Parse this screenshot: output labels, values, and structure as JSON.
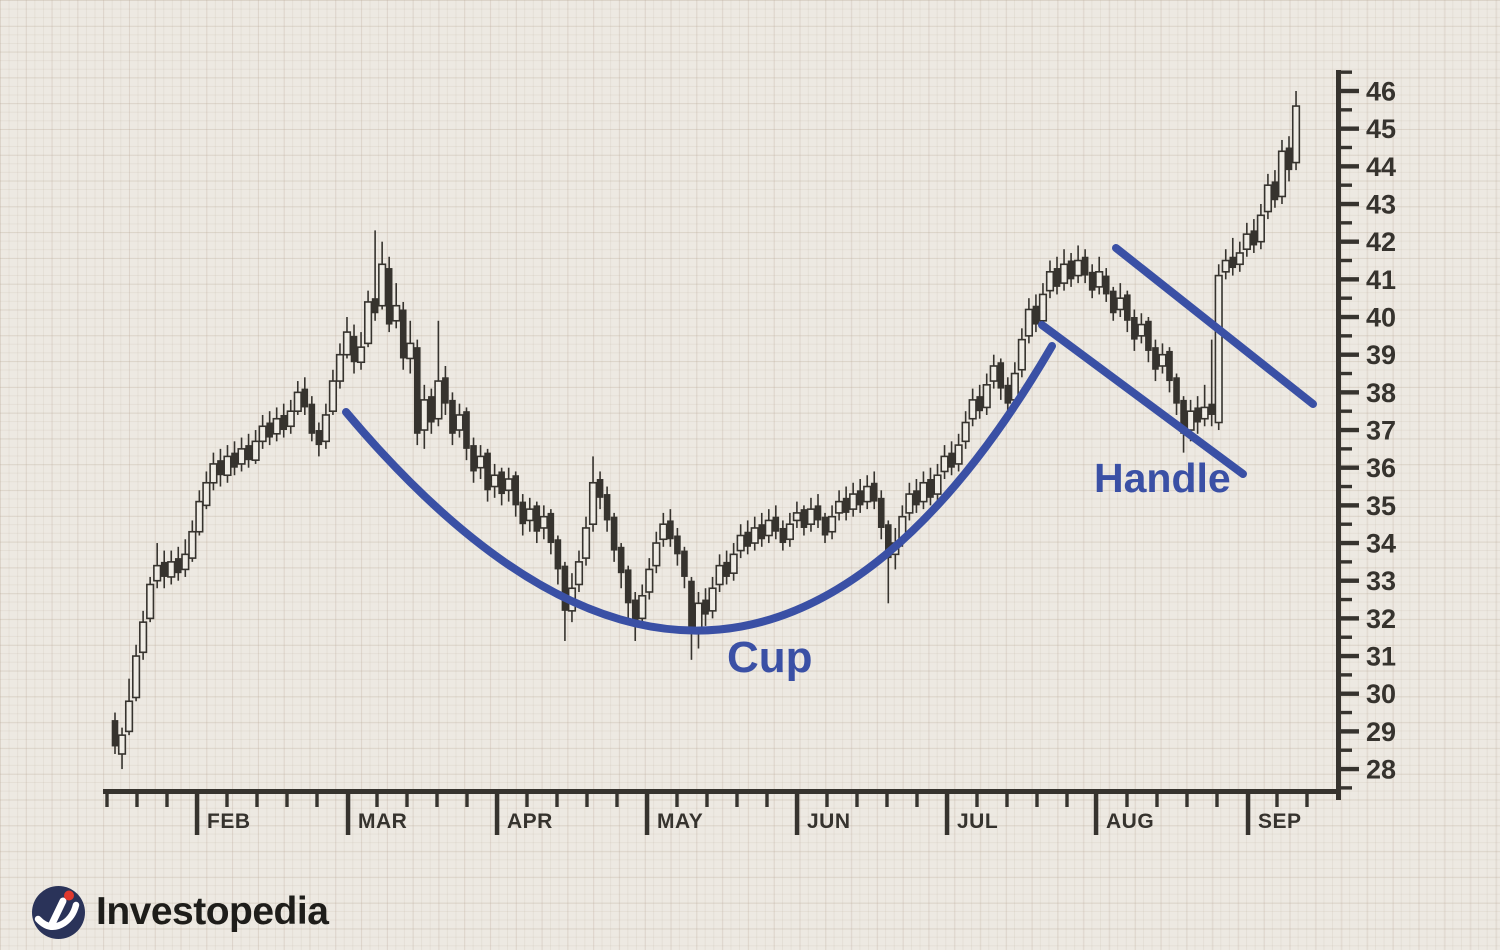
{
  "branding": {
    "name": "Investopedia"
  },
  "annotations": {
    "cup": "Cup",
    "handle": "Handle"
  },
  "colors": {
    "background": "#EDE9E2",
    "candle_dark": "#36332E",
    "candle_hollow_fill": "#EFECE5",
    "axis": "#36332E",
    "annotation_blue": "#3A50A5",
    "logo_navy": "#2A3359",
    "logo_red": "#E0392E",
    "logo_text_color": "#1E1D1A"
  },
  "chart_data": {
    "type": "candlestick",
    "pattern_shown": "cup and handle",
    "x_axis": {
      "month_labels": [
        "FEB",
        "MAR",
        "APR",
        "MAY",
        "JUN",
        "JUL",
        "AUG",
        "SEP"
      ],
      "minor_ticks_between_months": 4
    },
    "y_axis": {
      "side": "right",
      "tick_labels": [
        46,
        45,
        44,
        43,
        42,
        41,
        40,
        39,
        38,
        37,
        36,
        35,
        34,
        33,
        32,
        31,
        30,
        29,
        28
      ],
      "min": 27.5,
      "max": 46.5,
      "major_step": 1,
      "minor_step": 0.5
    },
    "candle_format": "[open, high, low, close]",
    "candles": [
      [
        29.3,
        29.5,
        28.4,
        28.6
      ],
      [
        28.4,
        29.1,
        28.0,
        28.9
      ],
      [
        29.0,
        30.4,
        28.9,
        29.8
      ],
      [
        29.9,
        31.3,
        29.8,
        31.0
      ],
      [
        31.1,
        32.2,
        30.9,
        31.9
      ],
      [
        32.0,
        33.1,
        31.9,
        32.9
      ],
      [
        33.0,
        34.0,
        32.8,
        33.4
      ],
      [
        33.5,
        33.8,
        32.8,
        33.1
      ],
      [
        33.1,
        33.8,
        32.9,
        33.5
      ],
      [
        33.6,
        33.9,
        33.0,
        33.2
      ],
      [
        33.3,
        34.1,
        33.1,
        33.7
      ],
      [
        33.6,
        34.6,
        33.5,
        34.3
      ],
      [
        34.3,
        35.4,
        34.2,
        35.1
      ],
      [
        35.0,
        35.9,
        34.9,
        35.6
      ],
      [
        35.6,
        36.4,
        35.4,
        36.1
      ],
      [
        36.2,
        36.5,
        35.5,
        35.8
      ],
      [
        35.8,
        36.6,
        35.6,
        36.3
      ],
      [
        36.4,
        36.7,
        35.8,
        36.0
      ],
      [
        36.1,
        36.8,
        35.9,
        36.5
      ],
      [
        36.6,
        36.9,
        36.0,
        36.2
      ],
      [
        36.2,
        37.0,
        36.1,
        36.7
      ],
      [
        36.7,
        37.4,
        36.5,
        37.1
      ],
      [
        37.2,
        37.5,
        36.6,
        36.8
      ],
      [
        36.9,
        37.6,
        36.7,
        37.3
      ],
      [
        37.4,
        37.7,
        36.8,
        37.0
      ],
      [
        37.1,
        37.8,
        36.9,
        37.5
      ],
      [
        37.5,
        38.3,
        37.4,
        38.0
      ],
      [
        38.1,
        38.4,
        37.4,
        37.6
      ],
      [
        37.7,
        37.9,
        36.7,
        36.9
      ],
      [
        37.0,
        37.2,
        36.3,
        36.6
      ],
      [
        36.7,
        37.7,
        36.5,
        37.4
      ],
      [
        37.5,
        38.6,
        37.4,
        38.3
      ],
      [
        38.3,
        39.3,
        38.1,
        39.0
      ],
      [
        39.0,
        40.0,
        38.9,
        39.6
      ],
      [
        39.5,
        39.8,
        38.5,
        38.8
      ],
      [
        38.8,
        39.6,
        38.6,
        39.2
      ],
      [
        39.3,
        40.7,
        39.2,
        40.4
      ],
      [
        40.5,
        42.3,
        39.9,
        40.1
      ],
      [
        40.3,
        42.0,
        40.2,
        41.4
      ],
      [
        41.3,
        41.6,
        39.6,
        39.8
      ],
      [
        39.9,
        40.9,
        39.7,
        40.3
      ],
      [
        40.2,
        40.4,
        38.6,
        38.9
      ],
      [
        38.9,
        39.9,
        38.5,
        39.3
      ],
      [
        39.2,
        39.4,
        36.6,
        36.9
      ],
      [
        37.0,
        38.2,
        36.5,
        37.8
      ],
      [
        37.9,
        38.1,
        36.9,
        37.2
      ],
      [
        37.3,
        39.9,
        37.1,
        38.3
      ],
      [
        38.4,
        38.7,
        37.4,
        37.7
      ],
      [
        37.8,
        38.0,
        36.6,
        36.9
      ],
      [
        37.0,
        37.7,
        36.8,
        37.4
      ],
      [
        37.5,
        37.6,
        36.2,
        36.5
      ],
      [
        36.6,
        36.8,
        35.6,
        35.9
      ],
      [
        36.0,
        36.6,
        35.7,
        36.3
      ],
      [
        36.4,
        36.5,
        35.1,
        35.4
      ],
      [
        35.5,
        36.1,
        35.2,
        35.8
      ],
      [
        35.9,
        36.0,
        35.0,
        35.3
      ],
      [
        35.4,
        36.0,
        35.1,
        35.7
      ],
      [
        35.8,
        35.9,
        34.7,
        35.0
      ],
      [
        35.1,
        35.3,
        34.2,
        34.5
      ],
      [
        34.6,
        35.2,
        34.3,
        34.9
      ],
      [
        35.0,
        35.1,
        34.0,
        34.3
      ],
      [
        34.4,
        35.0,
        34.1,
        34.7
      ],
      [
        34.8,
        34.9,
        33.7,
        34.0
      ],
      [
        34.1,
        34.2,
        32.9,
        33.3
      ],
      [
        33.4,
        33.5,
        31.4,
        32.2
      ],
      [
        32.2,
        33.2,
        31.9,
        32.8
      ],
      [
        32.9,
        33.8,
        32.7,
        33.5
      ],
      [
        33.6,
        34.7,
        33.4,
        34.4
      ],
      [
        34.5,
        36.3,
        34.3,
        35.6
      ],
      [
        35.7,
        35.9,
        34.9,
        35.2
      ],
      [
        35.3,
        35.5,
        34.3,
        34.6
      ],
      [
        34.7,
        34.8,
        33.5,
        33.8
      ],
      [
        33.9,
        34.0,
        32.8,
        33.2
      ],
      [
        33.3,
        33.4,
        31.9,
        32.4
      ],
      [
        32.5,
        32.7,
        31.4,
        31.9
      ],
      [
        32.0,
        32.9,
        31.8,
        32.6
      ],
      [
        32.7,
        33.6,
        32.5,
        33.3
      ],
      [
        33.4,
        34.3,
        33.2,
        34.0
      ],
      [
        34.1,
        34.8,
        33.9,
        34.5
      ],
      [
        34.6,
        34.9,
        33.9,
        34.1
      ],
      [
        34.2,
        34.4,
        33.4,
        33.7
      ],
      [
        33.8,
        33.9,
        32.8,
        33.1
      ],
      [
        33.0,
        33.1,
        30.9,
        31.7
      ],
      [
        31.7,
        32.7,
        31.2,
        32.4
      ],
      [
        32.5,
        32.8,
        31.8,
        32.1
      ],
      [
        32.2,
        33.1,
        32.0,
        32.8
      ],
      [
        32.9,
        33.7,
        32.7,
        33.4
      ],
      [
        33.5,
        33.8,
        32.9,
        33.1
      ],
      [
        33.2,
        34.0,
        33.0,
        33.7
      ],
      [
        33.8,
        34.5,
        33.6,
        34.2
      ],
      [
        34.3,
        34.6,
        33.7,
        33.9
      ],
      [
        34.0,
        34.7,
        33.8,
        34.4
      ],
      [
        34.5,
        34.8,
        33.9,
        34.1
      ],
      [
        34.2,
        34.9,
        34.0,
        34.6
      ],
      [
        34.7,
        35.0,
        34.1,
        34.3
      ],
      [
        34.4,
        34.6,
        33.8,
        34.0
      ],
      [
        34.1,
        34.8,
        33.9,
        34.5
      ],
      [
        34.6,
        35.1,
        34.4,
        34.8
      ],
      [
        34.9,
        35.0,
        34.2,
        34.4
      ],
      [
        34.5,
        35.2,
        34.3,
        34.9
      ],
      [
        35.0,
        35.3,
        34.4,
        34.6
      ],
      [
        34.7,
        34.8,
        34.0,
        34.2
      ],
      [
        34.3,
        35.0,
        34.1,
        34.7
      ],
      [
        34.8,
        35.4,
        34.6,
        35.1
      ],
      [
        35.2,
        35.5,
        34.6,
        34.8
      ],
      [
        34.9,
        35.6,
        34.7,
        35.3
      ],
      [
        35.4,
        35.7,
        34.8,
        35.0
      ],
      [
        35.1,
        35.8,
        34.9,
        35.5
      ],
      [
        35.6,
        35.9,
        34.9,
        35.1
      ],
      [
        35.2,
        35.4,
        34.1,
        34.4
      ],
      [
        34.5,
        34.6,
        32.4,
        33.6
      ],
      [
        33.7,
        34.4,
        33.3,
        34.0
      ],
      [
        34.1,
        35.0,
        33.9,
        34.7
      ],
      [
        34.8,
        35.6,
        34.6,
        35.3
      ],
      [
        35.4,
        35.7,
        34.8,
        35.0
      ],
      [
        35.1,
        35.9,
        34.9,
        35.6
      ],
      [
        35.7,
        36.0,
        35.0,
        35.2
      ],
      [
        35.3,
        36.1,
        35.1,
        35.8
      ],
      [
        35.9,
        36.6,
        35.7,
        36.3
      ],
      [
        36.4,
        36.7,
        35.8,
        36.0
      ],
      [
        36.1,
        36.9,
        35.9,
        36.6
      ],
      [
        36.7,
        37.5,
        36.5,
        37.2
      ],
      [
        37.3,
        38.1,
        37.1,
        37.8
      ],
      [
        37.9,
        38.2,
        37.3,
        37.5
      ],
      [
        37.6,
        38.5,
        37.4,
        38.2
      ],
      [
        38.3,
        39.0,
        38.1,
        38.7
      ],
      [
        38.8,
        38.9,
        37.8,
        38.1
      ],
      [
        38.2,
        38.4,
        37.4,
        37.7
      ],
      [
        37.8,
        38.8,
        37.6,
        38.5
      ],
      [
        38.6,
        39.7,
        38.4,
        39.4
      ],
      [
        39.5,
        40.5,
        39.3,
        40.2
      ],
      [
        40.3,
        40.6,
        39.6,
        39.8
      ],
      [
        39.9,
        40.9,
        39.7,
        40.6
      ],
      [
        40.7,
        41.5,
        40.5,
        41.2
      ],
      [
        41.3,
        41.6,
        40.6,
        40.8
      ],
      [
        40.9,
        41.8,
        40.7,
        41.4
      ],
      [
        41.5,
        41.7,
        40.8,
        41.0
      ],
      [
        41.1,
        41.9,
        40.9,
        41.5
      ],
      [
        41.6,
        41.8,
        40.9,
        41.1
      ],
      [
        41.2,
        41.4,
        40.5,
        40.7
      ],
      [
        40.8,
        41.6,
        40.6,
        41.2
      ],
      [
        41.1,
        41.3,
        40.4,
        40.6
      ],
      [
        40.7,
        40.8,
        39.9,
        40.1
      ],
      [
        40.2,
        40.9,
        40.0,
        40.5
      ],
      [
        40.6,
        40.7,
        39.6,
        39.9
      ],
      [
        40.0,
        40.2,
        39.1,
        39.4
      ],
      [
        39.5,
        40.1,
        39.3,
        39.8
      ],
      [
        39.9,
        40.0,
        38.8,
        39.1
      ],
      [
        39.2,
        39.4,
        38.3,
        38.6
      ],
      [
        38.7,
        39.3,
        38.5,
        39.0
      ],
      [
        39.1,
        39.2,
        38.0,
        38.3
      ],
      [
        38.4,
        38.5,
        37.4,
        37.7
      ],
      [
        37.8,
        37.9,
        36.4,
        36.9
      ],
      [
        37.0,
        37.8,
        36.7,
        37.5
      ],
      [
        37.6,
        37.9,
        36.9,
        37.2
      ],
      [
        37.3,
        38.2,
        37.1,
        37.6
      ],
      [
        37.7,
        39.4,
        37.1,
        37.4
      ],
      [
        37.2,
        41.4,
        37.0,
        41.1
      ],
      [
        41.2,
        41.8,
        41.0,
        41.5
      ],
      [
        41.6,
        42.1,
        41.1,
        41.3
      ],
      [
        41.4,
        42.0,
        41.2,
        41.7
      ],
      [
        41.8,
        42.5,
        41.6,
        42.2
      ],
      [
        42.3,
        42.6,
        41.7,
        41.9
      ],
      [
        42.0,
        43.0,
        41.8,
        42.7
      ],
      [
        42.8,
        43.8,
        42.6,
        43.5
      ],
      [
        43.6,
        43.9,
        42.9,
        43.1
      ],
      [
        43.2,
        44.7,
        43.0,
        44.4
      ],
      [
        44.5,
        44.8,
        43.6,
        43.9
      ],
      [
        44.1,
        46.0,
        43.9,
        45.6
      ]
    ]
  }
}
